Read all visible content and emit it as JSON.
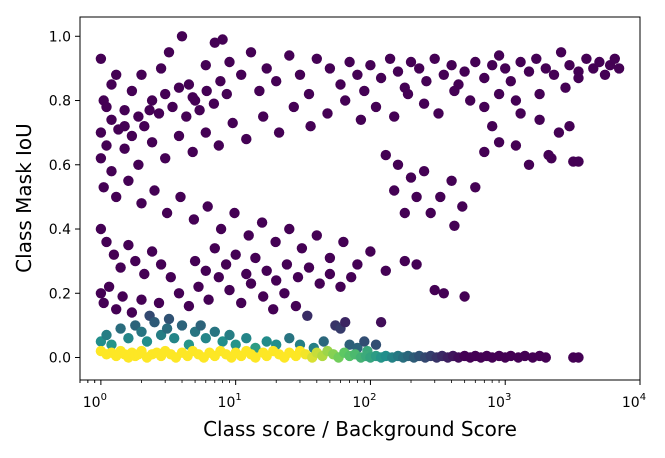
{
  "chart_data": {
    "type": "scatter",
    "xlabel": "Class score / Background Score",
    "ylabel": "Class Mask IoU",
    "x_scale": "log",
    "xlim": [
      0.7,
      10000
    ],
    "ylim": [
      -0.07,
      1.06
    ],
    "x_ticks": [
      {
        "value": 1,
        "base": "10",
        "exp": "0"
      },
      {
        "value": 10,
        "base": "10",
        "exp": "1"
      },
      {
        "value": 100,
        "base": "10",
        "exp": "2"
      },
      {
        "value": 1000,
        "base": "10",
        "exp": "3"
      },
      {
        "value": 10000,
        "base": "10",
        "exp": "4"
      }
    ],
    "y_ticks": [
      {
        "value": 0.0,
        "label": "0.0"
      },
      {
        "value": 0.2,
        "label": "0.2"
      },
      {
        "value": 0.4,
        "label": "0.4"
      },
      {
        "value": 0.6,
        "label": "0.6"
      },
      {
        "value": 0.8,
        "label": "0.8"
      },
      {
        "value": 1.0,
        "label": "1.0"
      }
    ],
    "grid": false,
    "colormap": "viridis",
    "color_dark": "#440154",
    "color_teal": "#21918c",
    "color_green": "#5ec962",
    "color_yellow": "#fde725",
    "points": [
      [
        1.0,
        0.93
      ],
      [
        1.05,
        0.8
      ],
      [
        1.1,
        0.78
      ],
      [
        1.2,
        0.85
      ],
      [
        1.3,
        0.88
      ],
      [
        1.5,
        0.72
      ],
      [
        1.7,
        0.83
      ],
      [
        2.0,
        0.88
      ],
      [
        2.3,
        0.77
      ],
      [
        2.8,
        0.9
      ],
      [
        3.2,
        0.95
      ],
      [
        4.0,
        1.0
      ],
      [
        4.5,
        0.85
      ],
      [
        5.0,
        0.8
      ],
      [
        6.0,
        0.91
      ],
      [
        7.0,
        0.98
      ],
      [
        8.0,
        0.99
      ],
      [
        9.0,
        0.92
      ],
      [
        11,
        0.88
      ],
      [
        13,
        0.95
      ],
      [
        15,
        0.83
      ],
      [
        17,
        0.9
      ],
      [
        20,
        0.86
      ],
      [
        25,
        0.94
      ],
      [
        30,
        0.88
      ],
      [
        35,
        0.82
      ],
      [
        40,
        0.93
      ],
      [
        50,
        0.9
      ],
      [
        60,
        0.85
      ],
      [
        70,
        0.92
      ],
      [
        80,
        0.88
      ],
      [
        90,
        0.83
      ],
      [
        100,
        0.91
      ],
      [
        120,
        0.87
      ],
      [
        140,
        0.93
      ],
      [
        160,
        0.89
      ],
      [
        180,
        0.84
      ],
      [
        200,
        0.92
      ],
      [
        230,
        0.9
      ],
      [
        260,
        0.86
      ],
      [
        300,
        0.93
      ],
      [
        350,
        0.88
      ],
      [
        400,
        0.91
      ],
      [
        450,
        0.85
      ],
      [
        500,
        0.89
      ],
      [
        600,
        0.92
      ],
      [
        700,
        0.87
      ],
      [
        800,
        0.91
      ],
      [
        900,
        0.94
      ],
      [
        1000,
        0.9
      ],
      [
        1100,
        0.86
      ],
      [
        1300,
        0.92
      ],
      [
        1500,
        0.89
      ],
      [
        1700,
        0.93
      ],
      [
        2000,
        0.9
      ],
      [
        2300,
        0.88
      ],
      [
        2600,
        0.95
      ],
      [
        3000,
        0.91
      ],
      [
        3500,
        0.89
      ],
      [
        4000,
        0.93
      ],
      [
        4500,
        0.9
      ],
      [
        5000,
        0.92
      ],
      [
        5500,
        0.88
      ],
      [
        6000,
        0.91
      ],
      [
        6500,
        0.93
      ],
      [
        7000,
        0.9
      ],
      [
        3500,
        0.87
      ],
      [
        2800,
        0.84
      ],
      [
        1800,
        0.82
      ],
      [
        1200,
        0.8
      ],
      [
        900,
        0.82
      ],
      [
        700,
        0.78
      ],
      [
        550,
        0.8
      ],
      [
        420,
        0.83
      ],
      [
        320,
        0.76
      ],
      [
        250,
        0.79
      ],
      [
        190,
        0.82
      ],
      [
        150,
        0.75
      ],
      [
        110,
        0.78
      ],
      [
        85,
        0.74
      ],
      [
        65,
        0.8
      ],
      [
        48,
        0.76
      ],
      [
        36,
        0.72
      ],
      [
        27,
        0.78
      ],
      [
        21,
        0.7
      ],
      [
        16,
        0.75
      ],
      [
        12,
        0.68
      ],
      [
        9.5,
        0.73
      ],
      [
        7.5,
        0.66
      ],
      [
        6,
        0.7
      ],
      [
        4.8,
        0.64
      ],
      [
        3.8,
        0.69
      ],
      [
        3,
        0.62
      ],
      [
        2.4,
        0.67
      ],
      [
        1.9,
        0.6
      ],
      [
        1.5,
        0.65
      ],
      [
        1.2,
        0.58
      ],
      [
        1.0,
        0.62
      ],
      [
        1.05,
        0.53
      ],
      [
        1.3,
        0.5
      ],
      [
        1.6,
        0.55
      ],
      [
        2.0,
        0.48
      ],
      [
        2.5,
        0.52
      ],
      [
        3.1,
        0.45
      ],
      [
        3.9,
        0.5
      ],
      [
        4.9,
        0.43
      ],
      [
        6.2,
        0.47
      ],
      [
        7.8,
        0.4
      ],
      [
        9.8,
        0.45
      ],
      [
        12.5,
        0.38
      ],
      [
        15.7,
        0.42
      ],
      [
        19.8,
        0.36
      ],
      [
        25,
        0.4
      ],
      [
        31,
        0.34
      ],
      [
        40,
        0.38
      ],
      [
        50,
        0.31
      ],
      [
        63,
        0.36
      ],
      [
        80,
        0.29
      ],
      [
        100,
        0.33
      ],
      [
        130,
        0.27
      ],
      [
        1.0,
        0.4
      ],
      [
        1.1,
        0.36
      ],
      [
        1.25,
        0.32
      ],
      [
        1.4,
        0.28
      ],
      [
        1.6,
        0.35
      ],
      [
        1.8,
        0.3
      ],
      [
        2.1,
        0.26
      ],
      [
        2.4,
        0.33
      ],
      [
        2.8,
        0.29
      ],
      [
        3.3,
        0.25
      ],
      [
        1.0,
        0.2
      ],
      [
        1.05,
        0.17
      ],
      [
        1.15,
        0.22
      ],
      [
        1.3,
        0.15
      ],
      [
        1.45,
        0.19
      ],
      [
        1.7,
        0.14
      ],
      [
        2.0,
        0.18
      ],
      [
        2.3,
        0.13
      ],
      [
        2.7,
        0.17
      ],
      [
        3.2,
        0.12
      ],
      [
        3.8,
        0.2
      ],
      [
        4.5,
        0.16
      ],
      [
        5.3,
        0.22
      ],
      [
        6.3,
        0.18
      ],
      [
        7.5,
        0.25
      ],
      [
        9,
        0.21
      ],
      [
        11,
        0.17
      ],
      [
        13,
        0.23
      ],
      [
        16,
        0.19
      ],
      [
        19,
        0.15
      ],
      [
        23,
        0.2
      ],
      [
        28,
        0.16
      ],
      [
        34,
        0.13
      ],
      [
        5,
        0.3
      ],
      [
        6,
        0.27
      ],
      [
        7,
        0.34
      ],
      [
        8.5,
        0.29
      ],
      [
        10,
        0.32
      ],
      [
        12,
        0.26
      ],
      [
        14,
        0.31
      ],
      [
        17,
        0.27
      ],
      [
        20,
        0.24
      ],
      [
        24,
        0.29
      ],
      [
        29,
        0.25
      ],
      [
        35,
        0.28
      ],
      [
        42,
        0.23
      ],
      [
        50,
        0.26
      ],
      [
        60,
        0.22
      ],
      [
        72,
        0.25
      ],
      [
        180,
        0.3
      ],
      [
        220,
        0.29
      ],
      [
        300,
        0.21
      ],
      [
        350,
        0.2
      ],
      [
        500,
        0.19
      ],
      [
        280,
        0.45
      ],
      [
        330,
        0.5
      ],
      [
        420,
        0.41
      ],
      [
        480,
        0.47
      ],
      [
        150,
        0.52
      ],
      [
        200,
        0.56
      ],
      [
        250,
        0.58
      ],
      [
        130,
        0.63
      ],
      [
        160,
        0.6
      ],
      [
        400,
        0.55
      ],
      [
        600,
        0.53
      ],
      [
        700,
        0.64
      ],
      [
        900,
        0.67
      ],
      [
        1200,
        0.66
      ],
      [
        1500,
        0.6
      ],
      [
        2200,
        0.62
      ],
      [
        2500,
        0.7
      ],
      [
        3200,
        0.61
      ],
      [
        3500,
        0.61
      ],
      [
        3000,
        0.72
      ],
      [
        1800,
        0.74
      ],
      [
        1300,
        0.76
      ],
      [
        800,
        0.72
      ],
      [
        2100,
        0.63
      ],
      [
        180,
        0.45
      ],
      [
        220,
        0.5
      ],
      [
        1.0,
        0.7
      ],
      [
        1.1,
        0.66
      ],
      [
        1.2,
        0.74
      ],
      [
        1.35,
        0.71
      ],
      [
        1.5,
        0.77
      ],
      [
        1.7,
        0.69
      ],
      [
        1.9,
        0.75
      ],
      [
        2.1,
        0.72
      ],
      [
        2.4,
        0.8
      ],
      [
        2.7,
        0.76
      ],
      [
        3.0,
        0.82
      ],
      [
        3.4,
        0.78
      ],
      [
        3.8,
        0.84
      ],
      [
        4.3,
        0.75
      ],
      [
        4.8,
        0.81
      ],
      [
        5.4,
        0.77
      ],
      [
        6.1,
        0.83
      ],
      [
        6.9,
        0.79
      ],
      [
        7.7,
        0.86
      ],
      [
        8.6,
        0.82
      ],
      [
        1.0,
        0.05
      ],
      [
        1.1,
        0.07
      ],
      [
        1.2,
        0.04
      ],
      [
        1.4,
        0.09
      ],
      [
        1.6,
        0.06
      ],
      [
        1.8,
        0.1
      ],
      [
        2.0,
        0.08
      ],
      [
        2.2,
        0.05
      ],
      [
        2.5,
        0.11
      ],
      [
        2.8,
        0.07
      ],
      [
        3.1,
        0.09
      ],
      [
        3.5,
        0.06
      ],
      [
        4.0,
        0.1
      ],
      [
        4.5,
        0.04
      ],
      [
        5.0,
        0.08
      ],
      [
        5.5,
        0.1
      ],
      [
        6,
        0.06
      ],
      [
        7,
        0.08
      ],
      [
        8,
        0.05
      ],
      [
        9,
        0.07
      ],
      [
        10,
        0.04
      ],
      [
        12,
        0.06
      ],
      [
        14,
        0.03
      ],
      [
        17,
        0.05
      ],
      [
        20,
        0.04
      ],
      [
        25,
        0.06
      ],
      [
        30,
        0.04
      ],
      [
        38,
        0.03
      ],
      [
        45,
        0.05
      ],
      [
        55,
        0.1
      ],
      [
        60,
        0.09
      ],
      [
        65,
        0.11
      ],
      [
        70,
        0.04
      ],
      [
        80,
        0.03
      ],
      [
        90,
        0.05
      ],
      [
        110,
        0.04
      ],
      [
        120,
        0.11
      ],
      [
        95,
        0.02
      ],
      [
        1.0,
        0.02
      ],
      [
        1.1,
        0.01
      ],
      [
        1.2,
        0.015
      ],
      [
        1.3,
        0.005
      ],
      [
        1.4,
        0.02
      ],
      [
        1.5,
        0.01
      ],
      [
        1.6,
        0.0
      ],
      [
        1.7,
        0.015
      ],
      [
        1.8,
        0.005
      ],
      [
        1.9,
        0.01
      ],
      [
        2.0,
        0.02
      ],
      [
        2.2,
        0.0
      ],
      [
        2.4,
        0.01
      ],
      [
        2.6,
        0.015
      ],
      [
        2.8,
        0.005
      ],
      [
        3.0,
        0.02
      ],
      [
        3.3,
        0.01
      ],
      [
        3.6,
        0.0
      ],
      [
        4.0,
        0.015
      ],
      [
        4.4,
        0.005
      ],
      [
        4.8,
        0.02
      ],
      [
        5.3,
        0.01
      ],
      [
        5.8,
        0.0
      ],
      [
        6.4,
        0.015
      ],
      [
        7.0,
        0.005
      ],
      [
        7.7,
        0.02
      ],
      [
        8.5,
        0.01
      ],
      [
        9.3,
        0.0
      ],
      [
        10,
        0.015
      ],
      [
        11,
        0.005
      ],
      [
        12,
        0.02
      ],
      [
        13,
        0.01
      ],
      [
        14,
        0.0
      ],
      [
        16,
        0.015
      ],
      [
        17,
        0.005
      ],
      [
        19,
        0.02
      ],
      [
        21,
        0.01
      ],
      [
        23,
        0.0
      ],
      [
        25,
        0.015
      ],
      [
        28,
        0.005
      ],
      [
        30,
        0.02
      ],
      [
        33,
        0.01
      ],
      [
        37,
        0.0
      ],
      [
        40,
        0.015
      ],
      [
        44,
        0.005
      ],
      [
        48,
        0.02
      ],
      [
        53,
        0.01
      ],
      [
        58,
        0.0
      ],
      [
        64,
        0.015
      ],
      [
        70,
        0.005
      ],
      [
        77,
        0.01
      ],
      [
        85,
        0.0
      ],
      [
        93,
        0.005
      ],
      [
        100,
        0.0
      ],
      [
        110,
        0.005
      ],
      [
        120,
        0.0
      ],
      [
        130,
        0.005
      ],
      [
        145,
        0.0
      ],
      [
        160,
        0.005
      ],
      [
        175,
        0.0
      ],
      [
        190,
        0.005
      ],
      [
        210,
        0.0
      ],
      [
        230,
        0.005
      ],
      [
        255,
        0.0
      ],
      [
        280,
        0.005
      ],
      [
        310,
        0.0
      ],
      [
        340,
        0.005
      ],
      [
        375,
        0.0
      ],
      [
        410,
        0.005
      ],
      [
        450,
        0.0
      ],
      [
        500,
        0.005
      ],
      [
        550,
        0.0
      ],
      [
        600,
        0.005
      ],
      [
        660,
        0.0
      ],
      [
        730,
        0.005
      ],
      [
        800,
        0.0
      ],
      [
        900,
        0.005
      ],
      [
        1000,
        0.0
      ],
      [
        1100,
        0.005
      ],
      [
        1250,
        0.0
      ],
      [
        1400,
        0.005
      ],
      [
        1600,
        0.0
      ],
      [
        1800,
        0.005
      ],
      [
        2000,
        0.0
      ],
      [
        3200,
        0.0
      ],
      [
        3500,
        0.0
      ]
    ]
  }
}
